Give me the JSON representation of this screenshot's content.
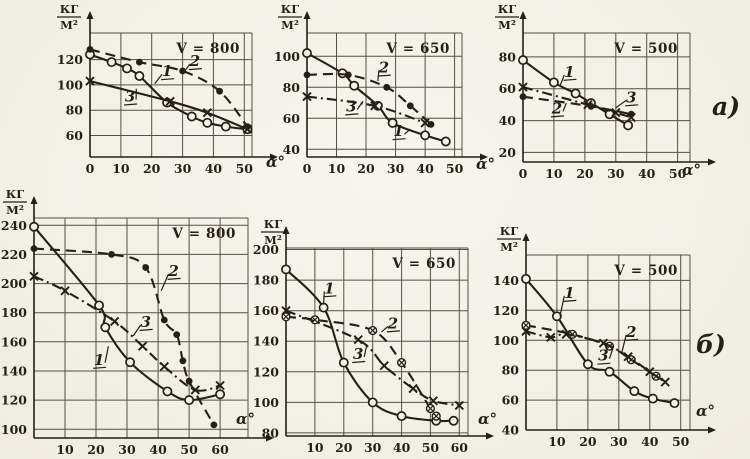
{
  "figure": {
    "ink": "#241f18",
    "paper": "#f3f1ea",
    "x_unit": "α°",
    "y_unit": {
      "num": "КГ",
      "den": "М²"
    },
    "row_labels": [
      {
        "label": "а)"
      },
      {
        "label": "б)"
      }
    ]
  },
  "chart_data": [
    {
      "id": "a-v800",
      "type": "line",
      "title": "V = 800",
      "xlabel": "α°",
      "ylabel": "КГ/М²",
      "xlim": [
        0,
        52.5
      ],
      "ylim": [
        43,
        141
      ],
      "xticks": [
        0,
        10,
        20,
        30,
        40,
        50
      ],
      "yticks": [
        60,
        80,
        100,
        120
      ],
      "alpha_offset": [
        14,
        10
      ],
      "series": [
        {
          "label": "1",
          "line": "solid",
          "marker": "circle-open",
          "points": [
            [
              0,
              124
            ],
            [
              7,
              118
            ],
            [
              12,
              113
            ],
            [
              16,
              107
            ],
            [
              25,
              86
            ],
            [
              33,
              75
            ],
            [
              38,
              70
            ],
            [
              44,
              67
            ],
            [
              51,
              65
            ]
          ]
        },
        {
          "label": "2",
          "line": "dashed",
          "marker": "circle-filled",
          "points": [
            [
              0,
              128
            ],
            [
              16,
              118
            ],
            [
              30,
              111
            ],
            [
              42,
              95
            ],
            [
              51,
              67
            ]
          ]
        },
        {
          "label": "3",
          "line": "solid",
          "marker": "x",
          "points": [
            [
              0,
              103
            ],
            [
              26,
              87
            ],
            [
              38,
              78
            ],
            [
              51,
              65
            ]
          ]
        }
      ],
      "annotations": [
        {
          "label": "1",
          "x": 25,
          "y": 110,
          "to": [
            21,
            101
          ]
        },
        {
          "label": "2",
          "x": 34,
          "y": 118,
          "to": [
            31,
            112
          ]
        },
        {
          "label": "3",
          "x": 13,
          "y": 90,
          "to": [
            15,
            97
          ]
        }
      ]
    },
    {
      "id": "a-v650",
      "type": "line",
      "title": "V = 650",
      "xlabel": "α°",
      "ylabel": "КГ/М²",
      "xlim": [
        0,
        52.5
      ],
      "ylim": [
        35,
        115
      ],
      "xticks": [
        0,
        10,
        20,
        30,
        40,
        50
      ],
      "yticks": [
        40,
        60,
        80,
        100
      ],
      "alpha_offset": [
        14,
        12
      ],
      "series": [
        {
          "label": "1",
          "line": "solid",
          "marker": "circle-open",
          "points": [
            [
              0,
              102
            ],
            [
              12,
              89
            ],
            [
              16,
              81
            ],
            [
              24,
              68
            ],
            [
              29,
              57
            ],
            [
              40,
              49
            ],
            [
              47,
              45
            ]
          ]
        },
        {
          "label": "2",
          "line": "dashed",
          "marker": "circle-filled",
          "points": [
            [
              0,
              88
            ],
            [
              14,
              88
            ],
            [
              27,
              80
            ],
            [
              35,
              68
            ],
            [
              42,
              56
            ]
          ]
        },
        {
          "label": "3",
          "line": "dashdot",
          "marker": "x",
          "points": [
            [
              0,
              74
            ],
            [
              23,
              68
            ],
            [
              40,
              57
            ]
          ]
        }
      ],
      "annotations": [
        {
          "label": "1",
          "x": 31,
          "y": 51,
          "to": [
            35,
            53
          ]
        },
        {
          "label": "2",
          "x": 26,
          "y": 92,
          "to": [
            24,
            84
          ]
        },
        {
          "label": "3",
          "x": 15,
          "y": 67,
          "to": [
            19,
            71
          ]
        }
      ]
    },
    {
      "id": "a-v500",
      "type": "line",
      "title": "V = 500",
      "xlabel": "α°",
      "ylabel": "КГ/М²",
      "xlim": [
        0,
        54
      ],
      "ylim": [
        14,
        95
      ],
      "xticks": [
        0,
        10,
        20,
        30,
        40,
        50
      ],
      "yticks": [
        20,
        40,
        60,
        80
      ],
      "alpha_offset": [
        -8,
        13
      ],
      "series": [
        {
          "label": "1",
          "line": "solid",
          "marker": "circle-open",
          "points": [
            [
              0,
              78
            ],
            [
              10,
              64
            ],
            [
              17,
              57
            ],
            [
              22,
              51
            ],
            [
              28,
              44
            ],
            [
              34,
              37
            ]
          ]
        },
        {
          "label": "2",
          "line": "dashed",
          "marker": "circle-filled",
          "points": [
            [
              0,
              55
            ],
            [
              22,
              49
            ],
            [
              35,
              44
            ]
          ]
        },
        {
          "label": "3",
          "line": "dashdot",
          "marker": "x",
          "points": [
            [
              0,
              61
            ],
            [
              21,
              50
            ],
            [
              30,
              45
            ],
            [
              35,
              42
            ]
          ]
        }
      ],
      "annotations": [
        {
          "label": "1",
          "x": 15,
          "y": 70,
          "to": [
            12,
            62
          ]
        },
        {
          "label": "2",
          "x": 11,
          "y": 47,
          "to": [
            14,
            51
          ]
        },
        {
          "label": "3",
          "x": 35,
          "y": 54,
          "to": [
            30,
            48
          ]
        }
      ]
    },
    {
      "id": "b-v800",
      "type": "line",
      "title": "V = 800",
      "xlabel": "α°",
      "ylabel": "КГ/М²",
      "xlim": [
        0,
        69
      ],
      "ylim": [
        94,
        245
      ],
      "xticks": [
        10,
        20,
        30,
        40,
        50,
        60
      ],
      "yticks": [
        100,
        120,
        140,
        160,
        180,
        200,
        220,
        240
      ],
      "alpha_offset": [
        -12,
        -14
      ],
      "series": [
        {
          "label": "1",
          "line": "solid",
          "marker": "circle-open",
          "points": [
            [
              0,
              239
            ],
            [
              21,
              185
            ],
            [
              23,
              170
            ],
            [
              31,
              146
            ],
            [
              43,
              126
            ],
            [
              50,
              120
            ],
            [
              60,
              124
            ]
          ]
        },
        {
          "label": "2",
          "line": "dashed",
          "marker": "circle-filled",
          "points": [
            [
              0,
              224
            ],
            [
              25,
              220
            ],
            [
              36,
              211
            ],
            [
              42,
              175
            ],
            [
              46,
              165
            ],
            [
              48,
              147
            ],
            [
              50,
              133
            ],
            [
              58,
              103
            ]
          ]
        },
        {
          "label": "3",
          "line": "dashdot",
          "marker": "x",
          "points": [
            [
              0,
              205
            ],
            [
              10,
              195
            ],
            [
              26,
              174
            ],
            [
              35,
              157
            ],
            [
              42,
              143
            ],
            [
              52,
              127
            ],
            [
              60,
              130
            ]
          ]
        }
      ],
      "annotations": [
        {
          "label": "1",
          "x": 21,
          "y": 147,
          "to": [
            24,
            157
          ]
        },
        {
          "label": "2",
          "x": 45,
          "y": 208,
          "to": [
            41,
            195
          ]
        },
        {
          "label": "3",
          "x": 36,
          "y": 173,
          "to": [
            32,
            164
          ]
        }
      ]
    },
    {
      "id": "b-v650",
      "type": "line",
      "title": "V = 650",
      "xlabel": "α°",
      "ylabel": "КГ/М²",
      "xlim": [
        0,
        63
      ],
      "ylim": [
        78,
        201
      ],
      "xticks": [
        10,
        20,
        30,
        40,
        50,
        60
      ],
      "yticks": [
        80,
        100,
        120,
        140,
        160,
        180,
        200
      ],
      "alpha_offset": [
        10,
        -12
      ],
      "series": [
        {
          "label": "1",
          "line": "solid",
          "marker": "circle-open",
          "points": [
            [
              0,
              187
            ],
            [
              13,
              162
            ],
            [
              20,
              126
            ],
            [
              30,
              100
            ],
            [
              40,
              91
            ],
            [
              52,
              88
            ],
            [
              58,
              88
            ]
          ]
        },
        {
          "label": "2",
          "line": "dashed",
          "marker": "circle-x",
          "points": [
            [
              0,
              156
            ],
            [
              10,
              154
            ],
            [
              30,
              147
            ],
            [
              40,
              126
            ],
            [
              50,
              96
            ],
            [
              52,
              91
            ]
          ]
        },
        {
          "label": "3",
          "line": "dashdot",
          "marker": "x",
          "points": [
            [
              0,
              160
            ],
            [
              25,
              141
            ],
            [
              34,
              124
            ],
            [
              44,
              109
            ],
            [
              51,
              101
            ],
            [
              60,
              98
            ]
          ]
        }
      ],
      "annotations": [
        {
          "label": "1",
          "x": 15,
          "y": 174,
          "to": [
            13,
            164
          ]
        },
        {
          "label": "2",
          "x": 37,
          "y": 151,
          "to": [
            33,
            146
          ]
        },
        {
          "label": "3",
          "x": 25,
          "y": 131,
          "to": [
            28,
            138
          ]
        }
      ]
    },
    {
      "id": "b-v500",
      "type": "line",
      "title": "V = 500",
      "xlabel": "α°",
      "ylabel": "КГ/М²",
      "xlim": [
        0,
        53
      ],
      "ylim": [
        40,
        157
      ],
      "xticks": [
        10,
        20,
        30,
        40,
        50
      ],
      "yticks": [
        40,
        60,
        80,
        100,
        120,
        140
      ],
      "alpha_offset": [
        6,
        -14
      ],
      "series": [
        {
          "label": "1",
          "line": "solid",
          "marker": "circle-open",
          "points": [
            [
              0,
              141
            ],
            [
              10,
              116
            ],
            [
              20,
              84
            ],
            [
              27,
              79
            ],
            [
              35,
              66
            ],
            [
              41,
              61
            ],
            [
              48,
              58
            ]
          ]
        },
        {
          "label": "2",
          "line": "dashed",
          "marker": "circle-x",
          "points": [
            [
              0,
              110
            ],
            [
              15,
              104
            ],
            [
              27,
              96
            ],
            [
              34,
              87
            ],
            [
              42,
              76
            ]
          ]
        },
        {
          "label": "3",
          "line": "dashdot",
          "marker": "x",
          "points": [
            [
              0,
              106
            ],
            [
              8,
              102
            ],
            [
              13,
              104
            ],
            [
              25,
              98
            ],
            [
              33,
              89
            ],
            [
              40,
              79
            ],
            [
              45,
              72
            ]
          ]
        }
      ],
      "annotations": [
        {
          "label": "1",
          "x": 14,
          "y": 131,
          "to": [
            11,
            116
          ]
        },
        {
          "label": "2",
          "x": 34,
          "y": 105,
          "to": [
            31,
            92
          ]
        },
        {
          "label": "3",
          "x": 25,
          "y": 89,
          "to": [
            28,
            94
          ]
        }
      ]
    }
  ]
}
